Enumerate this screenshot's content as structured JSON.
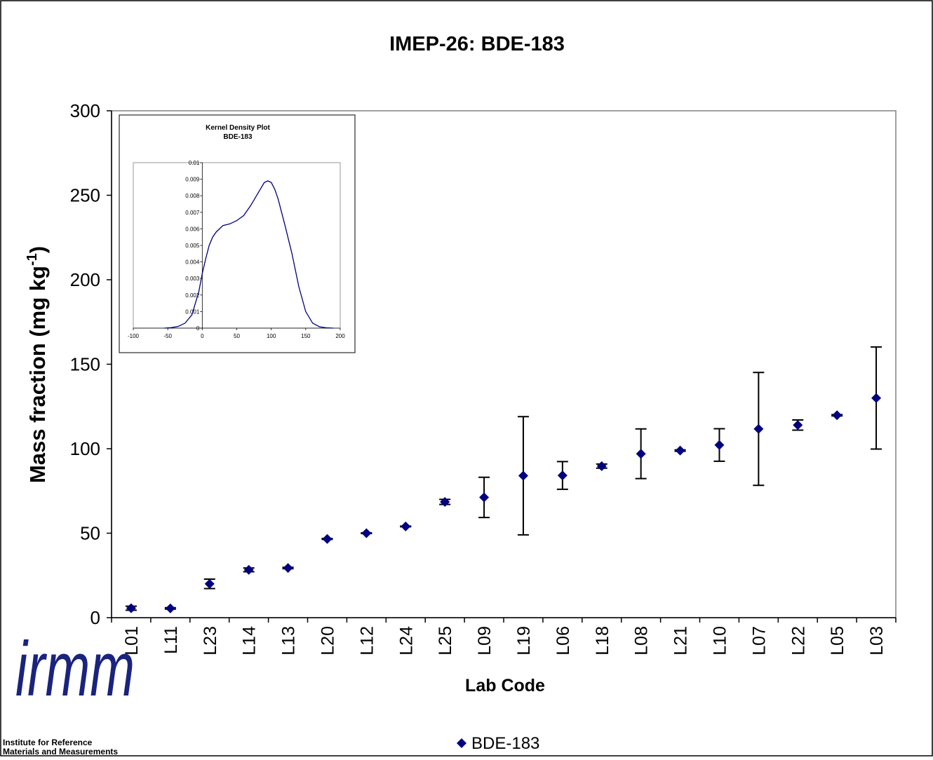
{
  "colors": {
    "marker": "#000080",
    "error_bar": "#000000",
    "axis": "#000000",
    "plot_border": "#808080",
    "inset_curve": "#000080"
  },
  "logo": {
    "text": "irmm",
    "caption_line1": "Institute for Reference",
    "caption_line2": "Materials and Measurements"
  },
  "chart_data": [
    {
      "type": "scatter",
      "title": "IMEP-26: BDE-183",
      "xlabel": "Lab Code",
      "ylabel_main": "Mass fraction (mg kg",
      "ylabel_sup": "-1",
      "ylabel_end": ")",
      "ylim": [
        0,
        300
      ],
      "yticks": [
        0,
        50,
        100,
        150,
        200,
        250,
        300
      ],
      "grid": false,
      "legend_placement": "bottom-center",
      "categories": [
        "L01",
        "L11",
        "L23",
        "L14",
        "L13",
        "L20",
        "L12",
        "L24",
        "L25",
        "L09",
        "L19",
        "L06",
        "L18",
        "L08",
        "L21",
        "L10",
        "L07",
        "L22",
        "L05",
        "L03"
      ],
      "series": [
        {
          "name": "BDE-183",
          "values": [
            5.6,
            5.5,
            20.0,
            28.3,
            29.4,
            46.6,
            50.0,
            54.0,
            68.5,
            71.2,
            84.0,
            84.2,
            89.7,
            97.0,
            98.9,
            102.2,
            111.7,
            114.0,
            119.8,
            130.0
          ],
          "err_low": [
            4.4,
            5.1,
            17.2,
            27.2,
            29.0,
            46.3,
            49.8,
            53.8,
            67.0,
            59.3,
            49.0,
            76.0,
            88.5,
            82.3,
            98.5,
            92.6,
            78.3,
            111.0,
            119.4,
            99.8
          ],
          "err_high": [
            6.8,
            5.9,
            22.8,
            29.4,
            29.8,
            46.9,
            50.2,
            54.2,
            70.0,
            83.1,
            119.0,
            92.4,
            90.9,
            111.7,
            99.3,
            111.8,
            145.1,
            117.0,
            120.2,
            160.2
          ]
        }
      ]
    },
    {
      "type": "line",
      "title_line1": "Kernel Density Plot",
      "title_line2": "BDE-183",
      "xlim": [
        -100,
        200
      ],
      "ylim": [
        0,
        0.01
      ],
      "xticks": [
        -100,
        -50,
        0,
        50,
        100,
        150,
        200
      ],
      "yticks": [
        "0",
        "0.001",
        "0.002",
        "0.003",
        "0.004",
        "0.005",
        "0.006",
        "0.007",
        "0.008",
        "0.009",
        "0.01"
      ],
      "x": [
        -55,
        -45,
        -35,
        -25,
        -15,
        -5,
        0,
        5,
        10,
        15,
        20,
        25,
        30,
        40,
        50,
        60,
        70,
        80,
        90,
        95,
        100,
        105,
        110,
        115,
        120,
        130,
        140,
        150,
        160,
        170,
        180,
        190
      ],
      "y": [
        0,
        3e-05,
        0.0001,
        0.0003,
        0.0008,
        0.0022,
        0.0033,
        0.0042,
        0.005,
        0.0055,
        0.0058,
        0.006,
        0.0062,
        0.0063,
        0.0065,
        0.0068,
        0.0074,
        0.0081,
        0.0088,
        0.0089,
        0.0088,
        0.0084,
        0.0078,
        0.007,
        0.0062,
        0.0045,
        0.0025,
        0.001,
        0.0003,
        8e-05,
        2e-05,
        0
      ]
    }
  ],
  "legend": {
    "label": "BDE-183"
  }
}
